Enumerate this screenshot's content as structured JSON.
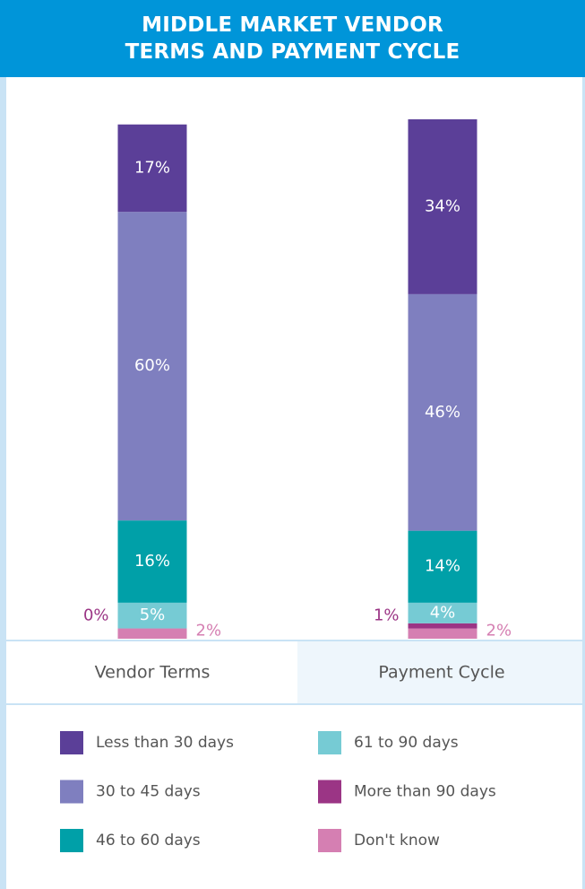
{
  "chart_data": {
    "type": "stacked-bar",
    "title": "MIDDLE MARKET VENDOR TERMS AND PAYMENT CYCLE",
    "categories": [
      "Vendor Terms",
      "Payment Cycle"
    ],
    "series": [
      {
        "name": "Less than 30 days",
        "color": "#5b3f98",
        "values": [
          17,
          34
        ],
        "value_labels": [
          "17%",
          "34%"
        ]
      },
      {
        "name": "30 to 45 days",
        "color": "#7f7fbf",
        "values": [
          60,
          46
        ],
        "value_labels": [
          "60%",
          "46%"
        ]
      },
      {
        "name": "46 to 60 days",
        "color": "#00a0a8",
        "values": [
          16,
          14
        ],
        "value_labels": [
          "16%",
          "14%"
        ]
      },
      {
        "name": "61 to 90 days",
        "color": "#76cbd4",
        "values": [
          5,
          4
        ],
        "value_labels": [
          "5%",
          "4%"
        ]
      },
      {
        "name": "More than 90 days",
        "color": "#9b3585",
        "values": [
          0,
          1
        ],
        "value_labels": [
          "0%",
          "1%"
        ]
      },
      {
        "name": "Don't know",
        "color": "#d57fb2",
        "values": [
          2,
          2
        ],
        "value_labels": [
          "2%",
          "2%"
        ]
      }
    ]
  }
}
